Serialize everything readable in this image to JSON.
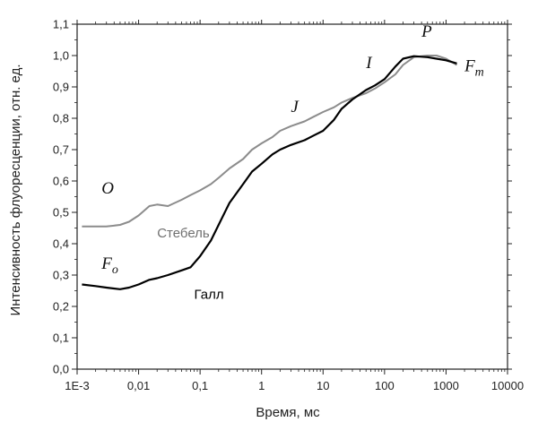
{
  "chart_data": {
    "type": "line",
    "title": "",
    "xlabel": "Время, мс",
    "ylabel": "Интенсивность флуоресценции, отн. ед.",
    "xscale": "log",
    "xlim": [
      0.001,
      10000
    ],
    "ylim": [
      0,
      1.1
    ],
    "xticks": [
      0.001,
      0.01,
      0.1,
      1,
      10,
      100,
      1000,
      10000
    ],
    "xtick_labels": [
      "1E-3",
      "0,01",
      "0,1",
      "1",
      "10",
      "100",
      "1000",
      "10000"
    ],
    "yticks": [
      0,
      0.1,
      0.2,
      0.3,
      0.4,
      0.5,
      0.6,
      0.7,
      0.8,
      0.9,
      1.0,
      1.1
    ],
    "ytick_labels": [
      "0,0",
      "0,1",
      "0,2",
      "0,3",
      "0,4",
      "0,5",
      "0,6",
      "0,7",
      "0,8",
      "0,9",
      "1,0",
      "1,1"
    ],
    "grid": false,
    "legend": "none",
    "series": [
      {
        "name": "Стебель",
        "color": "#8c8c8c",
        "x": [
          0.0012,
          0.002,
          0.003,
          0.005,
          0.007,
          0.01,
          0.015,
          0.02,
          0.03,
          0.05,
          0.07,
          0.1,
          0.15,
          0.2,
          0.3,
          0.5,
          0.7,
          1,
          1.5,
          2,
          3,
          5,
          7,
          10,
          15,
          20,
          30,
          50,
          70,
          100,
          150,
          200,
          300,
          500,
          700,
          1000,
          1500
        ],
        "y": [
          0.455,
          0.455,
          0.455,
          0.46,
          0.47,
          0.49,
          0.52,
          0.525,
          0.52,
          0.54,
          0.555,
          0.57,
          0.59,
          0.61,
          0.64,
          0.67,
          0.7,
          0.72,
          0.74,
          0.76,
          0.775,
          0.79,
          0.805,
          0.82,
          0.835,
          0.85,
          0.865,
          0.88,
          0.895,
          0.915,
          0.94,
          0.97,
          0.995,
          1.0,
          1.0,
          0.99,
          0.97
        ]
      },
      {
        "name": "Галл",
        "color": "#000000",
        "x": [
          0.0012,
          0.002,
          0.003,
          0.005,
          0.007,
          0.01,
          0.015,
          0.02,
          0.03,
          0.05,
          0.07,
          0.1,
          0.15,
          0.2,
          0.3,
          0.5,
          0.7,
          1,
          1.5,
          2,
          3,
          5,
          7,
          10,
          15,
          20,
          30,
          50,
          70,
          100,
          150,
          200,
          300,
          500,
          700,
          1000,
          1500
        ],
        "y": [
          0.27,
          0.265,
          0.26,
          0.255,
          0.26,
          0.27,
          0.285,
          0.29,
          0.3,
          0.315,
          0.325,
          0.36,
          0.41,
          0.46,
          0.53,
          0.59,
          0.63,
          0.655,
          0.685,
          0.7,
          0.715,
          0.73,
          0.745,
          0.76,
          0.795,
          0.83,
          0.86,
          0.89,
          0.905,
          0.925,
          0.965,
          0.99,
          0.998,
          0.995,
          0.99,
          0.985,
          0.975
        ]
      }
    ],
    "annotations": [
      {
        "text": "O",
        "x": 0.0025,
        "y": 0.56,
        "style": "italic"
      },
      {
        "text": "J",
        "x": 3,
        "y": 0.82,
        "style": "italic"
      },
      {
        "text": "I",
        "x": 50,
        "y": 0.96,
        "style": "italic"
      },
      {
        "text": "P",
        "x": 400,
        "y": 1.06,
        "style": "italic"
      },
      {
        "text": "F",
        "sub": "m",
        "x": 2000,
        "y": 0.95,
        "style": "italic"
      },
      {
        "text": "F",
        "sub": "o",
        "x": 0.0025,
        "y": 0.32,
        "style": "italic"
      },
      {
        "text": "Стебель",
        "x": 0.02,
        "y": 0.42,
        "style": "normal",
        "color": "#707070"
      },
      {
        "text": "Галл",
        "x": 0.08,
        "y": 0.225,
        "style": "normal",
        "color": "#000000"
      }
    ]
  }
}
